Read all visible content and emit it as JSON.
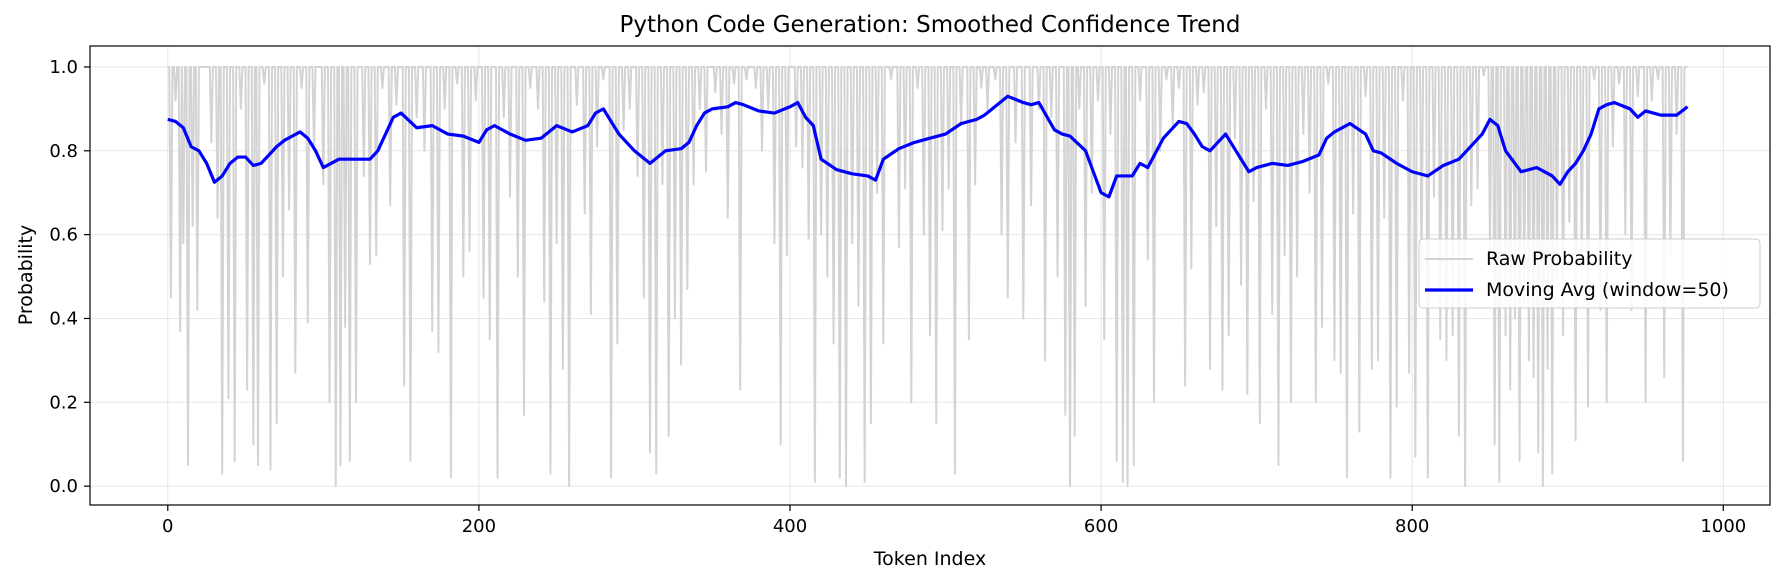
{
  "chart_data": {
    "type": "line",
    "title": "Python Code Generation: Smoothed Confidence Trend",
    "xlabel": "Token Index",
    "ylabel": "Probability",
    "xlim": [
      -50,
      1030
    ],
    "ylim": [
      -0.045,
      1.05
    ],
    "xticks": [
      0,
      200,
      400,
      600,
      800,
      1000
    ],
    "yticks": [
      0.0,
      0.2,
      0.4,
      0.6,
      0.8,
      1.0
    ],
    "xtick_labels": [
      "0",
      "200",
      "400",
      "600",
      "800",
      "1000"
    ],
    "ytick_labels": [
      "0.0",
      "0.2",
      "0.4",
      "0.6",
      "0.8",
      "1.0"
    ],
    "grid": true,
    "legend_position": "center-right",
    "series": [
      {
        "name": "Raw Probability",
        "color": "#d3d3d3",
        "x_start": 0,
        "x_end": 977,
        "baseline": 1.0,
        "dips": [
          [
            2,
            0.45
          ],
          [
            5,
            0.92
          ],
          [
            8,
            0.37
          ],
          [
            10,
            0.58
          ],
          [
            13,
            0.05
          ],
          [
            16,
            0.62
          ],
          [
            19,
            0.42
          ],
          [
            28,
            0.82
          ],
          [
            32,
            0.64
          ],
          [
            35,
            0.03
          ],
          [
            39,
            0.21
          ],
          [
            43,
            0.06
          ],
          [
            47,
            0.9
          ],
          [
            51,
            0.23
          ],
          [
            55,
            0.1
          ],
          [
            58,
            0.05
          ],
          [
            62,
            0.96
          ],
          [
            66,
            0.04
          ],
          [
            70,
            0.15
          ],
          [
            74,
            0.5
          ],
          [
            78,
            0.66
          ],
          [
            82,
            0.27
          ],
          [
            86,
            0.95
          ],
          [
            90,
            0.39
          ],
          [
            94,
            0.8
          ],
          [
            100,
            0.72
          ],
          [
            104,
            0.2
          ],
          [
            108,
            0.0
          ],
          [
            111,
            0.05
          ],
          [
            114,
            0.38
          ],
          [
            117,
            0.06
          ],
          [
            121,
            0.2
          ],
          [
            126,
            0.74
          ],
          [
            130,
            0.53
          ],
          [
            134,
            0.55
          ],
          [
            138,
            0.95
          ],
          [
            143,
            0.67
          ],
          [
            147,
            0.91
          ],
          [
            152,
            0.24
          ],
          [
            156,
            0.06
          ],
          [
            160,
            0.88
          ],
          [
            165,
            0.8
          ],
          [
            170,
            0.37
          ],
          [
            174,
            0.32
          ],
          [
            178,
            0.9
          ],
          [
            182,
            0.02
          ],
          [
            186,
            0.96
          ],
          [
            190,
            0.5
          ],
          [
            194,
            0.56
          ],
          [
            198,
            0.92
          ],
          [
            203,
            0.45
          ],
          [
            207,
            0.35
          ],
          [
            212,
            0.02
          ],
          [
            216,
            0.88
          ],
          [
            220,
            0.69
          ],
          [
            225,
            0.5
          ],
          [
            229,
            0.17
          ],
          [
            233,
            0.95
          ],
          [
            238,
            0.9
          ],
          [
            242,
            0.44
          ],
          [
            246,
            0.03
          ],
          [
            250,
            0.58
          ],
          [
            254,
            0.28
          ],
          [
            258,
            0.0
          ],
          [
            263,
            0.91
          ],
          [
            268,
            0.65
          ],
          [
            272,
            0.41
          ],
          [
            276,
            0.81
          ],
          [
            280,
            0.97
          ],
          [
            285,
            0.02
          ],
          [
            289,
            0.34
          ],
          [
            293,
            0.85
          ],
          [
            297,
            0.9
          ],
          [
            302,
            0.74
          ],
          [
            306,
            0.45
          ],
          [
            310,
            0.08
          ],
          [
            314,
            0.03
          ],
          [
            318,
            0.72
          ],
          [
            322,
            0.12
          ],
          [
            326,
            0.4
          ],
          [
            330,
            0.29
          ],
          [
            334,
            0.47
          ],
          [
            338,
            0.72
          ],
          [
            342,
            0.9
          ],
          [
            346,
            0.75
          ],
          [
            352,
            0.94
          ],
          [
            356,
            0.84
          ],
          [
            360,
            0.64
          ],
          [
            364,
            0.96
          ],
          [
            368,
            0.23
          ],
          [
            372,
            0.97
          ],
          [
            378,
            0.95
          ],
          [
            382,
            0.8
          ],
          [
            386,
            0.9
          ],
          [
            390,
            0.58
          ],
          [
            394,
            0.1
          ],
          [
            398,
            0.55
          ],
          [
            404,
            0.81
          ],
          [
            408,
            0.76
          ],
          [
            412,
            0.59
          ],
          [
            416,
            0.01
          ],
          [
            420,
            0.6
          ],
          [
            424,
            0.5
          ],
          [
            428,
            0.34
          ],
          [
            432,
            0.02
          ],
          [
            436,
            0.0
          ],
          [
            440,
            0.58
          ],
          [
            444,
            0.43
          ],
          [
            448,
            0.01
          ],
          [
            452,
            0.15
          ],
          [
            456,
            0.7
          ],
          [
            460,
            0.34
          ],
          [
            465,
            0.97
          ],
          [
            470,
            0.57
          ],
          [
            474,
            0.71
          ],
          [
            478,
            0.2
          ],
          [
            482,
            0.95
          ],
          [
            486,
            0.6
          ],
          [
            490,
            0.36
          ],
          [
            494,
            0.15
          ],
          [
            498,
            0.61
          ],
          [
            502,
            0.71
          ],
          [
            506,
            0.03
          ],
          [
            510,
            0.86
          ],
          [
            515,
            0.35
          ],
          [
            519,
            0.72
          ],
          [
            523,
            0.95
          ],
          [
            527,
            0.9
          ],
          [
            532,
            0.97
          ],
          [
            536,
            0.6
          ],
          [
            540,
            0.45
          ],
          [
            545,
            0.82
          ],
          [
            550,
            0.4
          ],
          [
            555,
            0.67
          ],
          [
            560,
            0.9
          ],
          [
            564,
            0.3
          ],
          [
            568,
            0.88
          ],
          [
            572,
            0.5
          ],
          [
            577,
            0.17
          ],
          [
            580,
            0.0
          ],
          [
            583,
            0.12
          ],
          [
            586,
            0.9
          ],
          [
            590,
            0.43
          ],
          [
            594,
            0.7
          ],
          [
            598,
            0.92
          ],
          [
            602,
            0.35
          ],
          [
            606,
            0.84
          ],
          [
            610,
            0.06
          ],
          [
            614,
            0.01
          ],
          [
            617,
            0.0
          ],
          [
            621,
            0.05
          ],
          [
            625,
            0.92
          ],
          [
            630,
            0.54
          ],
          [
            634,
            0.2
          ],
          [
            638,
            0.8
          ],
          [
            642,
            0.97
          ],
          [
            646,
            0.86
          ],
          [
            650,
            0.95
          ],
          [
            654,
            0.24
          ],
          [
            658,
            0.52
          ],
          [
            662,
            0.91
          ],
          [
            666,
            0.94
          ],
          [
            670,
            0.28
          ],
          [
            674,
            0.62
          ],
          [
            678,
            0.23
          ],
          [
            682,
            0.36
          ],
          [
            686,
            0.83
          ],
          [
            690,
            0.48
          ],
          [
            694,
            0.22
          ],
          [
            698,
            0.68
          ],
          [
            702,
            0.15
          ],
          [
            706,
            0.9
          ],
          [
            710,
            0.41
          ],
          [
            714,
            0.05
          ],
          [
            718,
            0.55
          ],
          [
            722,
            0.2
          ],
          [
            726,
            0.5
          ],
          [
            730,
            0.84
          ],
          [
            734,
            0.7
          ],
          [
            738,
            0.2
          ],
          [
            742,
            0.38
          ],
          [
            746,
            0.96
          ],
          [
            750,
            0.3
          ],
          [
            754,
            0.27
          ],
          [
            758,
            0.02
          ],
          [
            762,
            0.65
          ],
          [
            766,
            0.13
          ],
          [
            770,
            0.93
          ],
          [
            774,
            0.28
          ],
          [
            778,
            0.3
          ],
          [
            782,
            0.64
          ],
          [
            786,
            0.02
          ],
          [
            790,
            0.19
          ],
          [
            794,
            0.92
          ],
          [
            798,
            0.27
          ],
          [
            802,
            0.07
          ],
          [
            806,
            0.51
          ],
          [
            810,
            0.02
          ],
          [
            814,
            0.69
          ],
          [
            818,
            0.35
          ],
          [
            822,
            0.3
          ],
          [
            826,
            0.36
          ],
          [
            830,
            0.12
          ],
          [
            834,
            0.0
          ],
          [
            838,
            0.67
          ],
          [
            842,
            0.71
          ],
          [
            846,
            0.98
          ],
          [
            850,
            0.55
          ],
          [
            853,
            0.1
          ],
          [
            856,
            0.01
          ],
          [
            860,
            0.36
          ],
          [
            863,
            0.23
          ],
          [
            866,
            0.4
          ],
          [
            869,
            0.06
          ],
          [
            872,
            0.44
          ],
          [
            875,
            0.3
          ],
          [
            878,
            0.26
          ],
          [
            881,
            0.08
          ],
          [
            884,
            0.0
          ],
          [
            887,
            0.28
          ],
          [
            890,
            0.03
          ],
          [
            893,
            0.5
          ],
          [
            897,
            0.36
          ],
          [
            901,
            0.63
          ],
          [
            905,
            0.11
          ],
          [
            909,
            0.5
          ],
          [
            913,
            0.19
          ],
          [
            917,
            0.97
          ],
          [
            921,
            0.42
          ],
          [
            925,
            0.2
          ],
          [
            929,
            0.81
          ],
          [
            933,
            0.96
          ],
          [
            937,
            0.6
          ],
          [
            941,
            0.42
          ],
          [
            945,
            0.93
          ],
          [
            950,
            0.2
          ],
          [
            954,
            0.92
          ],
          [
            958,
            0.97
          ],
          [
            962,
            0.26
          ],
          [
            966,
            0.55
          ],
          [
            970,
            0.84
          ],
          [
            974,
            0.06
          ]
        ]
      },
      {
        "name": "Moving Avg (window=50)",
        "color": "#0000ff",
        "x": [
          0,
          5,
          10,
          15,
          20,
          25,
          30,
          35,
          40,
          45,
          50,
          55,
          60,
          65,
          70,
          75,
          80,
          85,
          90,
          95,
          100,
          110,
          120,
          130,
          135,
          140,
          145,
          150,
          160,
          170,
          180,
          190,
          200,
          205,
          210,
          220,
          230,
          240,
          250,
          260,
          270,
          275,
          280,
          290,
          300,
          310,
          320,
          330,
          335,
          340,
          345,
          350,
          360,
          365,
          370,
          380,
          390,
          400,
          405,
          410,
          415,
          420,
          430,
          440,
          450,
          455,
          460,
          470,
          480,
          490,
          500,
          510,
          520,
          525,
          530,
          540,
          550,
          555,
          560,
          570,
          575,
          580,
          590,
          595,
          600,
          605,
          610,
          620,
          625,
          630,
          640,
          650,
          655,
          660,
          665,
          670,
          680,
          690,
          695,
          700,
          710,
          720,
          730,
          740,
          745,
          750,
          760,
          770,
          775,
          780,
          790,
          800,
          810,
          820,
          830,
          840,
          845,
          850,
          855,
          860,
          870,
          880,
          890,
          895,
          900,
          905,
          910,
          915,
          920,
          925,
          930,
          940,
          945,
          950,
          960,
          970,
          977
        ],
        "y": [
          0.875,
          0.87,
          0.855,
          0.81,
          0.8,
          0.77,
          0.725,
          0.74,
          0.77,
          0.785,
          0.785,
          0.765,
          0.77,
          0.79,
          0.81,
          0.825,
          0.835,
          0.845,
          0.83,
          0.8,
          0.76,
          0.78,
          0.78,
          0.78,
          0.8,
          0.84,
          0.88,
          0.89,
          0.855,
          0.86,
          0.84,
          0.835,
          0.82,
          0.85,
          0.86,
          0.84,
          0.825,
          0.83,
          0.86,
          0.845,
          0.86,
          0.89,
          0.9,
          0.84,
          0.8,
          0.77,
          0.8,
          0.805,
          0.82,
          0.86,
          0.89,
          0.9,
          0.905,
          0.915,
          0.91,
          0.895,
          0.89,
          0.905,
          0.915,
          0.88,
          0.86,
          0.78,
          0.755,
          0.745,
          0.74,
          0.73,
          0.78,
          0.805,
          0.82,
          0.83,
          0.84,
          0.865,
          0.875,
          0.885,
          0.9,
          0.93,
          0.915,
          0.91,
          0.915,
          0.85,
          0.84,
          0.835,
          0.8,
          0.75,
          0.7,
          0.69,
          0.74,
          0.74,
          0.77,
          0.76,
          0.83,
          0.87,
          0.865,
          0.84,
          0.81,
          0.8,
          0.84,
          0.78,
          0.75,
          0.76,
          0.77,
          0.765,
          0.775,
          0.79,
          0.83,
          0.845,
          0.865,
          0.84,
          0.8,
          0.795,
          0.77,
          0.75,
          0.74,
          0.765,
          0.78,
          0.82,
          0.84,
          0.875,
          0.86,
          0.8,
          0.75,
          0.76,
          0.74,
          0.72,
          0.75,
          0.77,
          0.8,
          0.84,
          0.9,
          0.91,
          0.915,
          0.9,
          0.88,
          0.895,
          0.885,
          0.885,
          0.905
        ]
      }
    ]
  }
}
